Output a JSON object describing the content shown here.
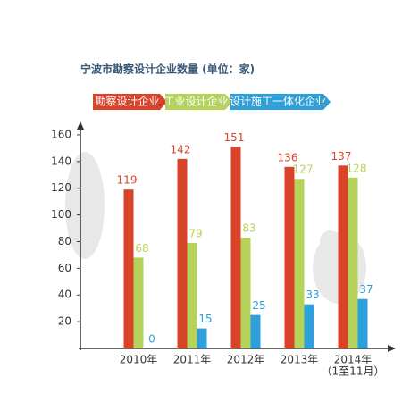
{
  "chart_data": {
    "type": "bar",
    "title": "宁波市勘察设计企业数量 (单位：家)",
    "categories": [
      "2010年",
      "2011年",
      "2012年",
      "2013年",
      "2014年"
    ],
    "note": "（1至11月）",
    "series": [
      {
        "name": "勘察设计企业",
        "color": "#d9432a",
        "values": [
          119,
          142,
          151,
          136,
          137
        ]
      },
      {
        "name": "工业设计企业",
        "color": "#b5d35a",
        "values": [
          68,
          79,
          83,
          127,
          128
        ]
      },
      {
        "name": "设计施工一体化企业",
        "color": "#2d9fd9",
        "values": [
          0,
          15,
          25,
          33,
          37
        ]
      }
    ],
    "ylim": [
      0,
      170
    ],
    "yticks": [
      20,
      40,
      60,
      80,
      100,
      120,
      140,
      160
    ],
    "grid": false
  }
}
